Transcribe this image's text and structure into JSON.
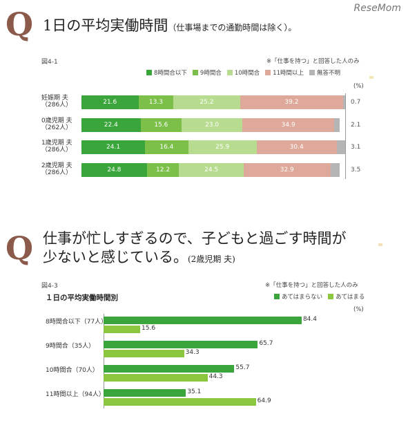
{
  "logo": "ReseMom",
  "section1": {
    "q": "Q",
    "title": "1日の平均実働時間",
    "title_note": "（仕事場までの通勤時間は除く）。",
    "fig": "図4-1",
    "note": "※「仕事を持つ」と回答した人のみ",
    "unit": "(%)"
  },
  "section2": {
    "q": "Q",
    "title_line1": "仕事が忙しすぎるので、子どもと過ごす時間が",
    "title_line2": "少ないと感じている。",
    "title_note": "(2歳児期 夫)",
    "fig": "図4-3",
    "subtitle": "１日の平均実働時間別",
    "note": "※「仕事を持つ」と回答した人のみ",
    "unit": "(%)"
  },
  "chart_data": [
    {
      "type": "bar",
      "orientation": "horizontal-stacked",
      "legend_position": "top-right",
      "series": [
        {
          "name": "8時間合以下",
          "color": "#3aa53a",
          "values": [
            21.6,
            22.4,
            24.1,
            24.8
          ]
        },
        {
          "name": "9時間合",
          "color": "#7cc04a",
          "values": [
            13.3,
            15.6,
            16.4,
            12.2
          ]
        },
        {
          "name": "10時間合",
          "color": "#b7db8f",
          "values": [
            25.2,
            23.0,
            25.9,
            24.5
          ]
        },
        {
          "name": "11時間以上",
          "color": "#dea99a",
          "values": [
            39.2,
            34.9,
            30.4,
            32.9
          ]
        },
        {
          "name": "無答不明",
          "color": "#b5b5b5",
          "values": [
            0.7,
            2.1,
            3.1,
            3.5
          ]
        }
      ],
      "categories": [
        {
          "line1": "妊娠期 夫",
          "line2": "（286人）"
        },
        {
          "line1": "0歳児期 夫",
          "line2": "（262人）"
        },
        {
          "line1": "1歳児期 夫",
          "line2": "（286人）"
        },
        {
          "line1": "2歳児期 夫",
          "line2": "（286人）"
        }
      ],
      "xlim": [
        0,
        100
      ]
    },
    {
      "type": "bar",
      "orientation": "horizontal-grouped",
      "legend_position": "top-right",
      "categories": [
        "8時間合以下（77人）",
        "9時間合（35人）",
        "10時間合（70人）",
        "11時間以上（94人）"
      ],
      "series": [
        {
          "name": "あてはまらない",
          "color": "#3aa53a",
          "values": [
            84.4,
            65.7,
            55.7,
            35.1
          ]
        },
        {
          "name": "あてはまる",
          "color": "#8cc63f",
          "values": [
            15.6,
            34.3,
            44.3,
            64.9
          ]
        }
      ],
      "xlim": [
        0,
        100
      ]
    }
  ]
}
